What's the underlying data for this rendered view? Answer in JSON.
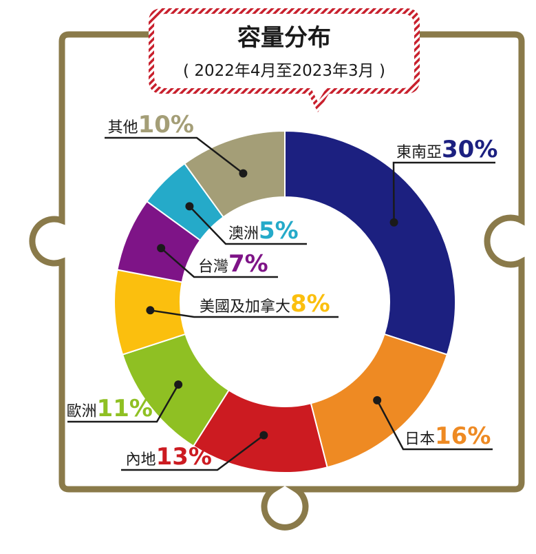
{
  "chart_data": {
    "type": "pie",
    "title": "容量分布",
    "subtitle": "( 2022年4月至2023年3月 )",
    "categories": [
      "東南亞",
      "日本",
      "內地",
      "歐洲",
      "美國及加拿大",
      "台灣",
      "澳洲",
      "其他"
    ],
    "values": [
      30,
      16,
      13,
      11,
      8,
      7,
      5,
      10
    ],
    "value_labels": [
      "30%",
      "16%",
      "13%",
      "11%",
      "8%",
      "7%",
      "5%",
      "10%"
    ],
    "colors": [
      "#1c2080",
      "#ee8a23",
      "#cc1b21",
      "#8fc023",
      "#fbbf0e",
      "#7e1487",
      "#25aac9",
      "#a49e77"
    ]
  },
  "theme": {
    "frame_color": "#8a7a4a",
    "bubble_border": "#c8202d"
  }
}
